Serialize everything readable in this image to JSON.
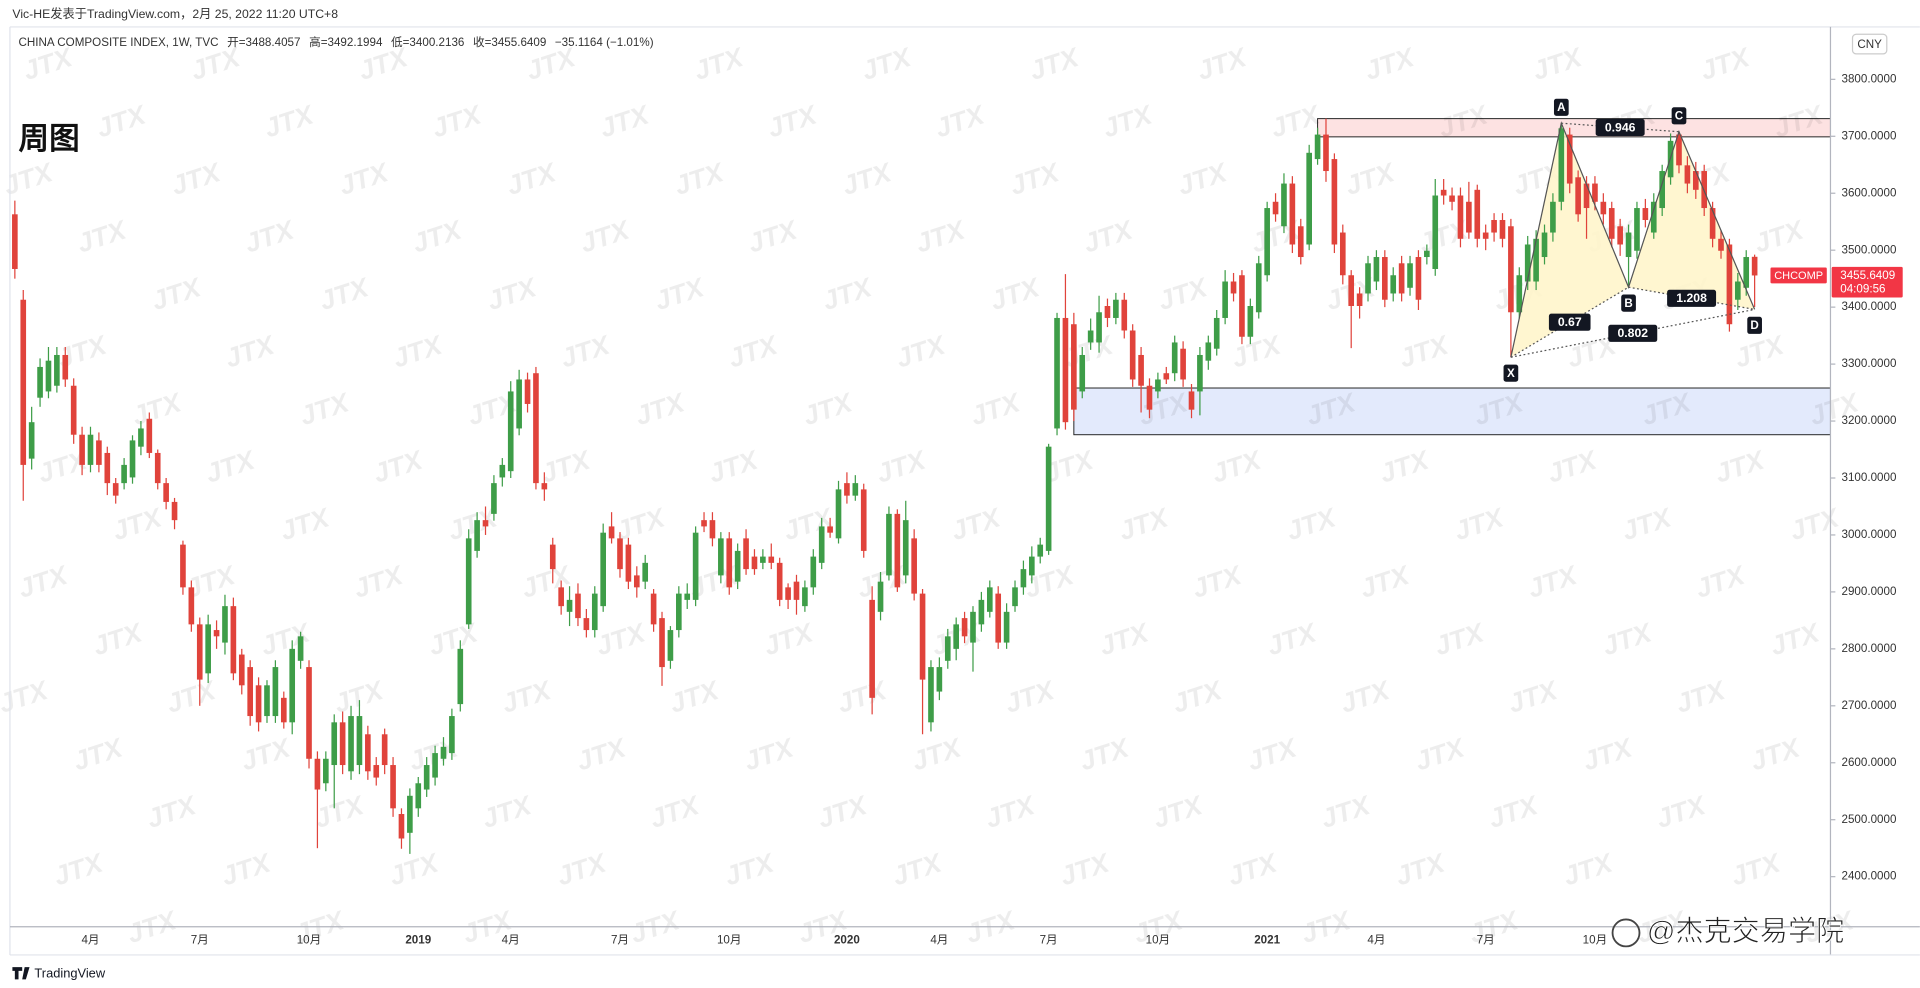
{
  "header": {
    "publisher": "Vic-HE发表于TradingView.com，2月 25, 2022 11:20 UTC+8"
  },
  "chart_data": {
    "type": "candlestick",
    "title": "周图",
    "symbol": "CHINA COMPOSITE INDEX, 1W, TVC",
    "ohlc_prefixes": [
      "开=",
      "高=",
      "低=",
      "收="
    ],
    "change": "−35.1164 (−1.01%)",
    "currency": "CNY",
    "symbol_tag": "CHCOMP",
    "countdown": "04:09:56",
    "categories": [
      null,
      null,
      null,
      null,
      null,
      null,
      null,
      null,
      null,
      "4月",
      null,
      null,
      null,
      null,
      null,
      null,
      null,
      null,
      null,
      null,
      null,
      null,
      "7月",
      null,
      null,
      null,
      null,
      null,
      null,
      null,
      null,
      null,
      null,
      null,
      null,
      "10月",
      null,
      null,
      null,
      null,
      null,
      null,
      null,
      null,
      null,
      null,
      null,
      null,
      "2019",
      null,
      null,
      null,
      null,
      null,
      null,
      null,
      null,
      null,
      null,
      "4月",
      null,
      null,
      null,
      null,
      null,
      null,
      null,
      null,
      null,
      null,
      null,
      null,
      "7月",
      null,
      null,
      null,
      null,
      null,
      null,
      null,
      null,
      null,
      null,
      null,
      null,
      "10月",
      null,
      null,
      null,
      null,
      null,
      null,
      null,
      null,
      null,
      null,
      null,
      null,
      null,
      "2020",
      null,
      null,
      null,
      null,
      null,
      null,
      null,
      null,
      null,
      null,
      "4月",
      null,
      null,
      null,
      null,
      null,
      null,
      null,
      null,
      null,
      null,
      null,
      null,
      "7月",
      null,
      null,
      null,
      null,
      null,
      null,
      null,
      null,
      null,
      null,
      null,
      null,
      "10月",
      null,
      null,
      null,
      null,
      null,
      null,
      null,
      null,
      null,
      null,
      null,
      null,
      "2021",
      null,
      null,
      null,
      null,
      null,
      null,
      null,
      null,
      null,
      null,
      null,
      null,
      "4月",
      null,
      null,
      null,
      null,
      null,
      null,
      null,
      null,
      null,
      null,
      null,
      null,
      "7月",
      null,
      null,
      null,
      null,
      null,
      null,
      null,
      null,
      null,
      null,
      null,
      null,
      "10月",
      null,
      null,
      null,
      null,
      null,
      null,
      null,
      null,
      null,
      null,
      null,
      null,
      null,
      null,
      null,
      null,
      null,
      null,
      null
    ],
    "open": [
      3563,
      3413,
      3134,
      3241,
      3252,
      3262,
      3316,
      3262,
      3176,
      3123,
      3166,
      3144,
      3091,
      3091,
      3101,
      3155,
      3204,
      3144,
      3091,
      3058,
      2983,
      2908,
      2843,
      2757,
      2833,
      2811,
      2875,
      2790,
      2768,
      2736,
      2682,
      2682,
      2714,
      2671,
      2779,
      2768,
      2607,
      2564,
      2596,
      2671,
      2585,
      2596,
      2650,
      2596,
      2650,
      2596,
      2510,
      2477,
      2520,
      2553,
      2574,
      2607,
      2617,
      2703,
      2843,
      2972,
      3026,
      3037,
      3101,
      3112,
      3187,
      3273,
      3284,
      3091,
      2983,
      2908,
      2865,
      2897,
      2854,
      2833,
      2875,
      3015,
      2994,
      2983,
      2929,
      2918,
      2897,
      2854,
      2779,
      2833,
      2886,
      2886,
      3026,
      3026,
      2929,
      2994,
      2918,
      2994,
      2962,
      2951,
      2962,
      2951,
      2908,
      2918,
      2875,
      2908,
      2951,
      3015,
      2994,
      3091,
      3069,
      3080,
      2886,
      2865,
      2929,
      3037,
      2929,
      2994,
      2897,
      2671,
      2725,
      2779,
      2800,
      2854,
      2811,
      2843,
      2865,
      2897,
      2811,
      2875,
      2908,
      2929,
      2962,
      2972,
      3187,
      3381,
      3370,
      3252,
      3338,
      3338,
      3402,
      3381,
      3413,
      3359,
      3316,
      3262,
      3252,
      3284,
      3284,
      3327,
      3252,
      3252,
      3306,
      3327,
      3381,
      3445,
      3456,
      3348,
      3391,
      3456,
      3585,
      3542,
      3617,
      3542,
      3510,
      3660,
      3703,
      3660,
      3531,
      3456,
      3424,
      3424,
      3445,
      3488,
      3424,
      3477,
      3434,
      3488,
      3488,
      3467,
      3606,
      3596,
      3596,
      3585,
      3606,
      3531,
      3553,
      3553,
      3542,
      3391,
      3445,
      3445,
      3488,
      3531,
      3585,
      3703,
      3628,
      3617,
      3617,
      3585,
      3574,
      3542,
      3488,
      3499,
      3574,
      3531,
      3574,
      3628,
      3703,
      3649,
      3639,
      3639,
      3574,
      3520,
      3510,
      3413,
      3434,
      3488.4057
    ],
    "high": [
      3587,
      3430,
      3225,
      3310,
      3330,
      3330,
      3330,
      3275,
      3190,
      3190,
      3180,
      3155,
      3100,
      3135,
      3175,
      3200,
      3215,
      3150,
      3100,
      3065,
      2990,
      2920,
      2855,
      2860,
      2850,
      2895,
      2890,
      2800,
      2780,
      2750,
      2745,
      2780,
      2725,
      2815,
      2830,
      2780,
      2620,
      2620,
      2685,
      2690,
      2700,
      2710,
      2665,
      2610,
      2660,
      2610,
      2520,
      2555,
      2575,
      2610,
      2630,
      2645,
      2695,
      2815,
      3010,
      3040,
      3050,
      3105,
      3135,
      3270,
      3290,
      3285,
      3295,
      3110,
      2995,
      2920,
      2910,
      2915,
      2870,
      2910,
      3020,
      3040,
      3005,
      2995,
      2945,
      2965,
      2905,
      2865,
      2840,
      2910,
      2915,
      3015,
      3040,
      3040,
      3005,
      3005,
      2985,
      3010,
      2975,
      2975,
      2985,
      2960,
      2915,
      2930,
      2920,
      2975,
      3030,
      3030,
      3095,
      3110,
      3105,
      3090,
      2910,
      2935,
      3050,
      3045,
      3060,
      3010,
      2905,
      2780,
      2785,
      2835,
      2855,
      2865,
      2875,
      2900,
      2920,
      2910,
      2880,
      2920,
      2955,
      2980,
      2995,
      3160,
      3390,
      3458,
      3390,
      3330,
      3380,
      3420,
      3415,
      3425,
      3425,
      3370,
      3330,
      3275,
      3285,
      3295,
      3350,
      3340,
      3265,
      3330,
      3350,
      3395,
      3465,
      3460,
      3465,
      3415,
      3490,
      3585,
      3600,
      3635,
      3630,
      3555,
      3685,
      3715,
      3731,
      3670,
      3545,
      3465,
      3435,
      3490,
      3500,
      3500,
      3470,
      3490,
      3490,
      3500,
      3510,
      3625,
      3625,
      3610,
      3610,
      3620,
      3615,
      3545,
      3565,
      3565,
      3555,
      3470,
      3525,
      3535,
      3545,
      3600,
      3723,
      3715,
      3640,
      3630,
      3630,
      3600,
      3585,
      3555,
      3545,
      3585,
      3590,
      3600,
      3650,
      3705,
      3708,
      3665,
      3655,
      3650,
      3585,
      3535,
      3520,
      3460,
      3500,
      3492.1994
    ],
    "low": [
      3450,
      3060,
      3115,
      3225,
      3240,
      3250,
      3260,
      3160,
      3105,
      3110,
      3110,
      3070,
      3055,
      3080,
      3090,
      3140,
      3135,
      3080,
      3045,
      3010,
      2895,
      2830,
      2700,
      2740,
      2800,
      2790,
      2745,
      2720,
      2665,
      2655,
      2670,
      2670,
      2660,
      2650,
      2765,
      2590,
      2450,
      2550,
      2520,
      2580,
      2570,
      2580,
      2570,
      2560,
      2580,
      2505,
      2449,
      2440,
      2505,
      2540,
      2560,
      2595,
      2605,
      2690,
      2835,
      2960,
      3000,
      3025,
      3085,
      3100,
      3175,
      3215,
      3080,
      3060,
      2915,
      2860,
      2840,
      2840,
      2820,
      2820,
      2865,
      2985,
      2925,
      2905,
      2890,
      2905,
      2830,
      2735,
      2765,
      2820,
      2870,
      2875,
      3005,
      2980,
      2915,
      2895,
      2905,
      2930,
      2930,
      2940,
      2940,
      2875,
      2870,
      2860,
      2865,
      2895,
      2940,
      2995,
      2985,
      3055,
      3060,
      2960,
      2685,
      2850,
      2920,
      2900,
      2915,
      2885,
      2650,
      2655,
      2710,
      2765,
      2780,
      2810,
      2760,
      2830,
      2855,
      2800,
      2800,
      2865,
      2895,
      2915,
      2950,
      2965,
      3175,
      3185,
      3200,
      3240,
      3325,
      3320,
      3365,
      3370,
      3345,
      3260,
      3215,
      3205,
      3240,
      3265,
      3270,
      3260,
      3205,
      3210,
      3290,
      3315,
      3370,
      3410,
      3335,
      3335,
      3380,
      3445,
      3550,
      3530,
      3495,
      3475,
      3500,
      3650,
      3620,
      3495,
      3440,
      3328,
      3380,
      3410,
      3430,
      3400,
      3410,
      3410,
      3420,
      3395,
      3475,
      3455,
      3580,
      3570,
      3505,
      3520,
      3505,
      3500,
      3515,
      3505,
      3312,
      3380,
      3430,
      3430,
      3475,
      3515,
      3570,
      3600,
      3550,
      3520,
      3570,
      3545,
      3505,
      3490,
      3435,
      3485,
      3540,
      3520,
      3560,
      3615,
      3635,
      3600,
      3590,
      3560,
      3505,
      3485,
      3357,
      3395,
      3420,
      3400.2136
    ],
    "close": [
      3467,
      3123,
      3198,
      3295,
      3306,
      3316,
      3273,
      3176,
      3123,
      3176,
      3123,
      3091,
      3069,
      3123,
      3166,
      3187,
      3144,
      3091,
      3058,
      3026,
      2908,
      2843,
      2746,
      2843,
      2822,
      2875,
      2757,
      2736,
      2682,
      2671,
      2736,
      2768,
      2671,
      2800,
      2822,
      2607,
      2553,
      2607,
      2671,
      2596,
      2682,
      2682,
      2585,
      2574,
      2596,
      2520,
      2467,
      2542,
      2564,
      2596,
      2617,
      2628,
      2682,
      2800,
      2994,
      3026,
      3015,
      3091,
      3123,
      3252,
      3273,
      3230,
      3091,
      3080,
      2940,
      2875,
      2886,
      2854,
      2833,
      2897,
      3004,
      2994,
      2940,
      2918,
      2908,
      2951,
      2843,
      2768,
      2833,
      2897,
      2897,
      3004,
      3015,
      2994,
      2994,
      2908,
      2972,
      2940,
      2940,
      2962,
      2951,
      2886,
      2886,
      2886,
      2908,
      2962,
      3015,
      3004,
      3080,
      3069,
      3091,
      2972,
      2714,
      2918,
      3037,
      2908,
      3026,
      2897,
      2746,
      2768,
      2768,
      2822,
      2843,
      2822,
      2865,
      2886,
      2908,
      2811,
      2865,
      2908,
      2940,
      2962,
      2983,
      3155,
      3381,
      3198,
      3220,
      3316,
      3359,
      3391,
      3381,
      3413,
      3359,
      3273,
      3262,
      3220,
      3273,
      3273,
      3338,
      3273,
      3220,
      3316,
      3338,
      3381,
      3445,
      3424,
      3348,
      3402,
      3477,
      3574,
      3563,
      3617,
      3510,
      3488,
      3671,
      3703,
      3639,
      3510,
      3456,
      3402,
      3402,
      3477,
      3488,
      3413,
      3456,
      3424,
      3477,
      3413,
      3499,
      3596,
      3596,
      3585,
      3520,
      3531,
      3520,
      3520,
      3531,
      3520,
      3391,
      3456,
      3510,
      3520,
      3531,
      3585,
      3714,
      3617,
      3563,
      3574,
      3585,
      3563,
      3520,
      3510,
      3531,
      3574,
      3553,
      3585,
      3639,
      3692,
      3649,
      3617,
      3606,
      3574,
      3520,
      3499,
      3370,
      3445,
      3488,
      3455.6409
    ],
    "up_color": "#3e9d48",
    "down_color": "#e0433b",
    "ylim": [
      2312,
      3892
    ],
    "yticks": [
      {
        "value": 2400,
        "label": "2400.0000"
      },
      {
        "value": 2500,
        "label": "2500.0000"
      },
      {
        "value": 2600,
        "label": "2600.0000"
      },
      {
        "value": 2700,
        "label": "2700.0000"
      },
      {
        "value": 2800,
        "label": "2800.0000"
      },
      {
        "value": 2900,
        "label": "2900.0000"
      },
      {
        "value": 3000,
        "label": "3000.0000"
      },
      {
        "value": 3100,
        "label": "3100.0000"
      },
      {
        "value": 3200,
        "label": "3200.0000"
      },
      {
        "value": 3300,
        "label": "3300.0000"
      },
      {
        "value": 3400,
        "label": "3400.0000"
      },
      {
        "value": 3500,
        "label": "3500.0000"
      },
      {
        "value": 3600,
        "label": "3600.0000"
      },
      {
        "value": 3700,
        "label": "3700.0000"
      },
      {
        "value": 3800,
        "label": "3800.0000"
      }
    ],
    "zones": [
      {
        "top": 3731,
        "bottom": 3699,
        "from_index": 155,
        "color": "#fde2e2"
      },
      {
        "top": 3258,
        "bottom": 3176,
        "from_index": 126,
        "color": "#e3eafc"
      }
    ],
    "pattern": {
      "fill": "#fff4c8",
      "line_color": "#555555",
      "points": [
        {
          "label": "X",
          "index": 178,
          "price": 3312
        },
        {
          "label": "A",
          "index": 184,
          "price": 3723
        },
        {
          "label": "B",
          "index": 192,
          "price": 3435
        },
        {
          "label": "C",
          "index": 198,
          "price": 3708
        },
        {
          "label": "D",
          "index": 207,
          "price": 3396
        }
      ],
      "ratios": [
        {
          "between": [
            1,
            3
          ],
          "label": "0.946"
        },
        {
          "between": [
            0,
            2
          ],
          "label": "0.67"
        },
        {
          "between": [
            2,
            4
          ],
          "label": "1.208"
        },
        {
          "between": [
            0,
            4
          ],
          "label": "0.802"
        }
      ]
    }
  },
  "footer": {
    "brand": "TradingView",
    "watermark": "JTX",
    "credit": "@杰克交易学院"
  }
}
